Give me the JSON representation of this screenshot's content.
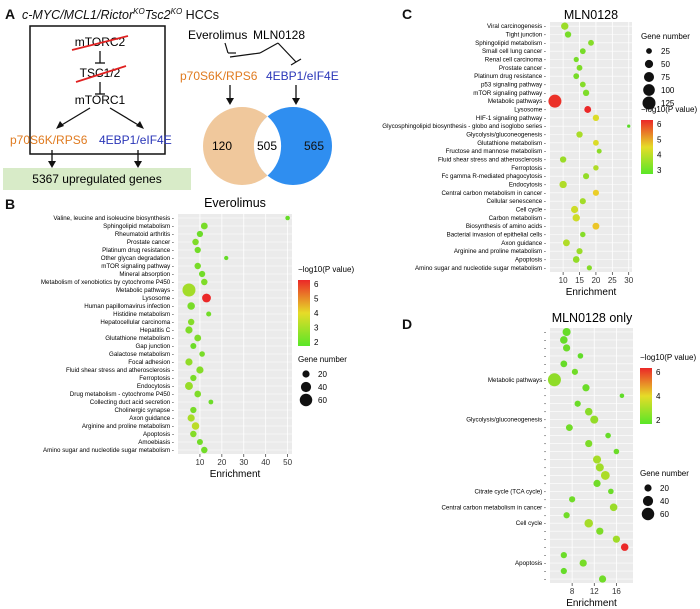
{
  "panelA": {
    "label": "A",
    "title": "c-MYC/MCL1/Rictor^KO Tsc2^KO HCCs",
    "title_main": "c-MYC/MCL1/Rictor",
    "title_sup1": "KO",
    "title_mid": "Tsc2",
    "title_sup2": "KO",
    "title_tail": " HCCs",
    "mtorc2": "mTORC2",
    "tsc": "TSC1/2",
    "mtorc1": "mTORC1",
    "p70": "p70S6K/RPS6",
    "ebp": "4EBP1/eIF4E",
    "genes": "5367 upregulated genes",
    "drug1": "Everolimus",
    "drug2": "MLN0128",
    "p70b": "p70S6K/RPS6",
    "ebpb": "4EBP1/eIF4E",
    "venn_left": "120",
    "venn_mid": "505",
    "venn_right": "565",
    "colors": {
      "orange": "#f0c89c",
      "blue": "#2f8ef0",
      "p70": "#e07b20",
      "ebp": "#2a36b8",
      "box": "#d8ebc8"
    }
  },
  "chart_data": [
    {
      "panel": "B",
      "type": "scatter",
      "title": "Everolimus",
      "xlabel": "Enrichment",
      "xlim": [
        0,
        52
      ],
      "xticks": [
        10,
        20,
        30,
        40,
        50
      ],
      "color_title": "−log10(P value)",
      "color_ticks": [
        "6",
        "5",
        "4",
        "3",
        "2"
      ],
      "size_title": "Gene number",
      "size_ticks": [
        "20",
        "40",
        "60"
      ],
      "categories": [
        "Valine, leucine and isoleucine biosynthesis",
        "Sphingolipid metabolism",
        "Rheumatoid arthritis",
        "Prostate cancer",
        "Platinum drug resistance",
        "Other glycan degradation",
        "mTOR signaling pathway",
        "Mineral absorption",
        "Metabolism of xenobiotics by cytochrome P450",
        "Metabolic pathways",
        "Lysosome",
        "Human papillomavirus infection",
        "Histidine metabolism",
        "Hepatocellular carcinoma",
        "Hepatitis C",
        "Glutathione metabolism",
        "Gap junction",
        "Galactose metabolism",
        "Focal adhesion",
        "Fluid shear stress and atherosclerosis",
        "Ferroptosis",
        "Endocytosis",
        "Drug metabolism - cytochrome P450",
        "Collecting duct acid secretion",
        "Cholinergic synapse",
        "Axon guidance",
        "Arginine and proline metabolism",
        "Apoptosis",
        "Amoebiasis",
        "Amino sugar and nucleotide sugar metabolism"
      ],
      "x": [
        50,
        12,
        10,
        8,
        9,
        22,
        9,
        11,
        12,
        5,
        13,
        6,
        14,
        6,
        5,
        9,
        7,
        11,
        5,
        10,
        7,
        5,
        9,
        15,
        7,
        6,
        8,
        7,
        10,
        12
      ],
      "color": [
        2.2,
        2.5,
        2.3,
        2.6,
        2.4,
        2.2,
        2.5,
        2.4,
        2.6,
        3.2,
        6.6,
        2.5,
        2.4,
        2.7,
        2.6,
        2.6,
        2.3,
        2.5,
        2.9,
        2.7,
        2.5,
        3.0,
        2.6,
        2.3,
        2.5,
        3.3,
        3.6,
        2.7,
        2.4,
        2.4
      ],
      "size": [
        8,
        18,
        15,
        16,
        15,
        7,
        16,
        15,
        16,
        65,
        30,
        22,
        10,
        16,
        20,
        18,
        14,
        12,
        20,
        20,
        15,
        24,
        17,
        9,
        15,
        20,
        22,
        16,
        14,
        16
      ]
    },
    {
      "panel": "C",
      "type": "scatter",
      "title": "MLN0128",
      "xlabel": "Enrichment",
      "xlim": [
        6,
        31
      ],
      "xticks": [
        10,
        15,
        20,
        25,
        30
      ],
      "color_title": "−log10(P value)",
      "color_ticks": [
        "6",
        "5",
        "4",
        "3"
      ],
      "size_title": "Gene number",
      "size_ticks": [
        "25",
        "50",
        "75",
        "100",
        "125"
      ],
      "categories": [
        "Viral carcinogenesis",
        "Tight junction",
        "Sphingolipid metabolism",
        "Small cell lung cancer",
        "Renal cell carcinoma",
        "Prostate cancer",
        "Platinum drug resistance",
        "p53 signaling pathway",
        "mTOR signaling pathway",
        "Metabolic pathways",
        "Lysosome",
        "HIF-1 signaling pathway",
        "Glycosphingolipid biosynthesis - globo and isoglobo series",
        "Glycolysis/gluconeogenesis",
        "Glutathione metabolism",
        "Fructose and mannose metabolism",
        "Fluid shear stress and atherosclerosis",
        "Ferroptosis",
        "Fc gamma R-mediated phagocytosis",
        "Endocytosis",
        "Central carbon metabolism in cancer",
        "Cellular senescence",
        "Cell cycle",
        "Carbon metabolism",
        "Biosynthesis of amino acids",
        "Bacterial invasion of epithelial cells",
        "Axon guidance",
        "Arginine and proline metabolism",
        "Apoptosis",
        "Amino sugar and nucleotide sugar metabolism"
      ],
      "x": [
        10.5,
        11.5,
        18.5,
        16,
        14,
        15,
        14,
        16,
        17,
        7.5,
        17.5,
        20,
        30,
        15,
        20,
        21,
        10,
        20,
        17,
        10,
        20,
        16,
        13.5,
        14,
        20,
        16,
        11,
        15,
        14,
        18
      ],
      "color": [
        3.3,
        2.8,
        3.0,
        2.8,
        2.8,
        2.9,
        2.8,
        3.0,
        2.9,
        6.2,
        6.3,
        4.2,
        2.4,
        3.5,
        4.2,
        3.1,
        3.3,
        3.6,
        3.2,
        3.6,
        4.5,
        3.4,
        4.0,
        4.0,
        4.6,
        3.0,
        3.6,
        3.3,
        3.2,
        3.0
      ],
      "size": [
        40,
        30,
        25,
        25,
        20,
        25,
        25,
        25,
        30,
        125,
        35,
        30,
        8,
        30,
        25,
        18,
        30,
        22,
        28,
        40,
        28,
        28,
        38,
        40,
        35,
        22,
        35,
        28,
        33,
        20
      ]
    },
    {
      "panel": "D",
      "type": "scatter",
      "title": "MLN0128 only",
      "xlabel": "Enrichment",
      "xlim": [
        4,
        19
      ],
      "xticks": [
        8,
        12,
        16
      ],
      "color_title": "−log10(P value)",
      "color_ticks": [
        "6",
        "4",
        "2"
      ],
      "size_title": "Gene number",
      "size_ticks": [
        "20",
        "40",
        "60"
      ],
      "categories": [
        "",
        "",
        "",
        "",
        "",
        "",
        "Metabolic pathways",
        "",
        "",
        "",
        "",
        "Glycolysis/gluconeogenesis",
        "",
        "",
        "",
        "",
        "",
        "",
        "",
        "",
        "Citrate cycle (TCA cycle)",
        "",
        "Central carbon metabolism in cancer",
        "",
        "Cell cycle",
        "",
        "",
        "",
        "",
        "Apoptosis",
        "",
        ""
      ],
      "x": [
        7,
        6.5,
        7,
        9.5,
        6.5,
        8.5,
        4.8,
        10.5,
        17,
        9,
        11,
        12,
        7.5,
        14.5,
        11,
        16,
        12.5,
        13,
        14,
        12.5,
        15,
        8,
        15.5,
        7,
        11,
        13,
        16,
        17.5,
        6.5,
        10,
        6.5,
        13.5
      ],
      "color": [
        2.4,
        2.4,
        2.5,
        2.3,
        2.4,
        2.6,
        3.1,
        2.5,
        2.3,
        2.5,
        3.0,
        3.2,
        2.6,
        2.4,
        2.8,
        2.5,
        3.5,
        3.4,
        3.6,
        2.6,
        2.5,
        2.6,
        3.3,
        2.6,
        3.5,
        2.8,
        3.4,
        7.0,
        2.5,
        2.7,
        2.4,
        2.6
      ],
      "size": [
        25,
        22,
        20,
        12,
        18,
        15,
        65,
        20,
        8,
        15,
        22,
        25,
        18,
        12,
        20,
        12,
        25,
        25,
        30,
        20,
        12,
        15,
        22,
        15,
        28,
        20,
        20,
        22,
        15,
        20,
        15,
        20
      ]
    }
  ]
}
